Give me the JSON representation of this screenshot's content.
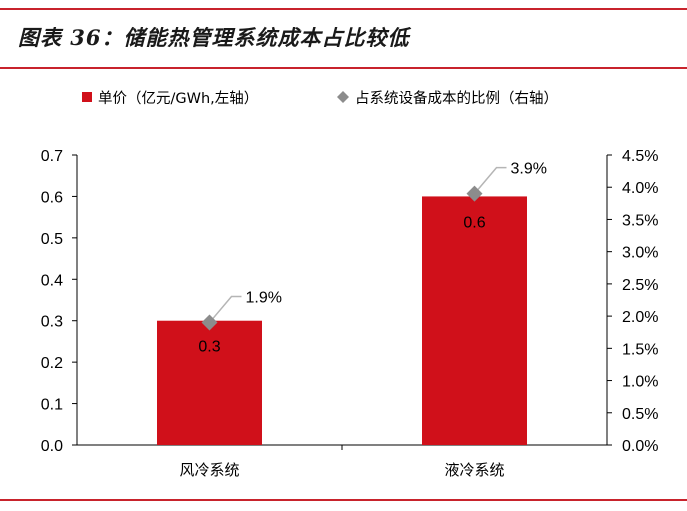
{
  "figure": {
    "title": "图表 36：储能热管理系统成本占比较低"
  },
  "colors": {
    "accent_red": "#c8232c",
    "bar_red": "#d0101a",
    "marker_gray": "#8c8c8c",
    "axis_black": "#000000"
  },
  "chart_data": {
    "type": "bar",
    "categories": [
      "风冷系统",
      "液冷系统"
    ],
    "series": [
      {
        "name": "单价（亿元/GWh,左轴）",
        "type": "bar",
        "axis": "left",
        "values": [
          0.3,
          0.6
        ],
        "data_labels": [
          "0.3",
          "0.6"
        ]
      },
      {
        "name": "占系统设备成本的比例（右轴）",
        "type": "scatter",
        "axis": "right",
        "values": [
          0.019,
          0.039
        ],
        "data_labels": [
          "1.9%",
          "3.9%"
        ]
      }
    ],
    "y_left": {
      "lim": [
        0,
        0.7
      ],
      "ticks": [
        "0.0",
        "0.1",
        "0.2",
        "0.3",
        "0.4",
        "0.5",
        "0.6",
        "0.7"
      ]
    },
    "y_right": {
      "lim": [
        0,
        0.045
      ],
      "ticks": [
        "0.0%",
        "0.5%",
        "1.0%",
        "1.5%",
        "2.0%",
        "2.5%",
        "3.0%",
        "3.5%",
        "4.0%",
        "4.5%"
      ]
    },
    "legend_position": "top",
    "grid": false
  }
}
